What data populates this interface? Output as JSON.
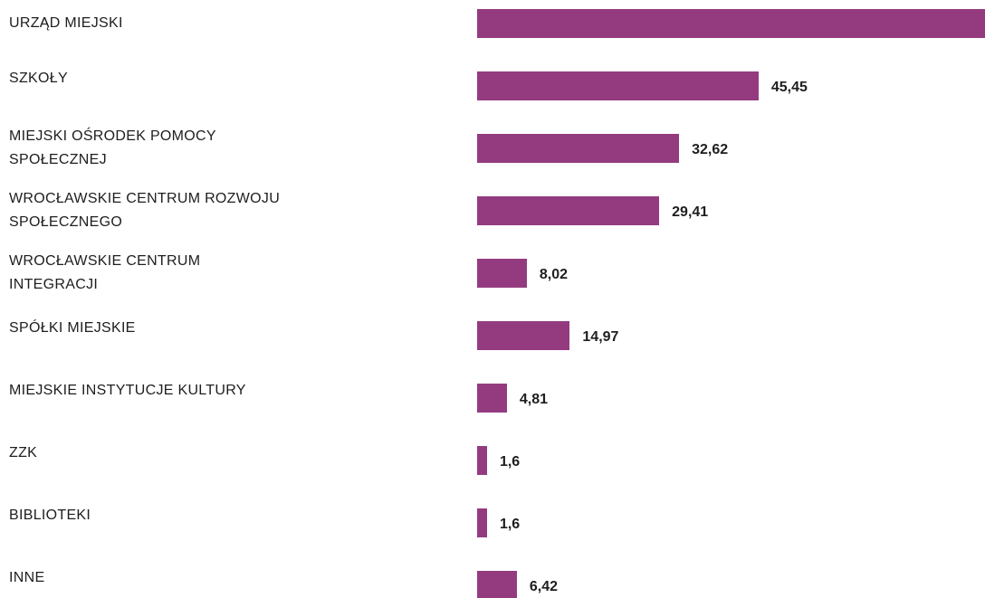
{
  "chart_data": {
    "type": "bar",
    "orientation": "horizontal",
    "color": "#943b80",
    "categories": [
      "URZĄD MIEJSKI",
      "SZKOŁY",
      "MIEJSKI OŚRODEK POMOCY SPOŁECZNEJ",
      "WROCŁAWSKIE CENTRUM ROZWOJU SPOŁECZNEGO",
      "WROCŁAWSKIE CENTRUM INTEGRACJI",
      "SPÓŁKI MIEJSKIE",
      "MIEJSKIE INSTYTUCJE KULTURY",
      "ZZK",
      "BIBLIOTEKI",
      "INNE"
    ],
    "values": [
      82,
      45.45,
      32.62,
      29.41,
      8.02,
      14.97,
      4.81,
      1.6,
      1.6,
      6.42
    ],
    "value_labels": [
      null,
      "45,45",
      "32,62",
      "29,41",
      "8,02",
      "14,97",
      "4,81",
      "1,6",
      "1,6",
      "6,42"
    ]
  }
}
